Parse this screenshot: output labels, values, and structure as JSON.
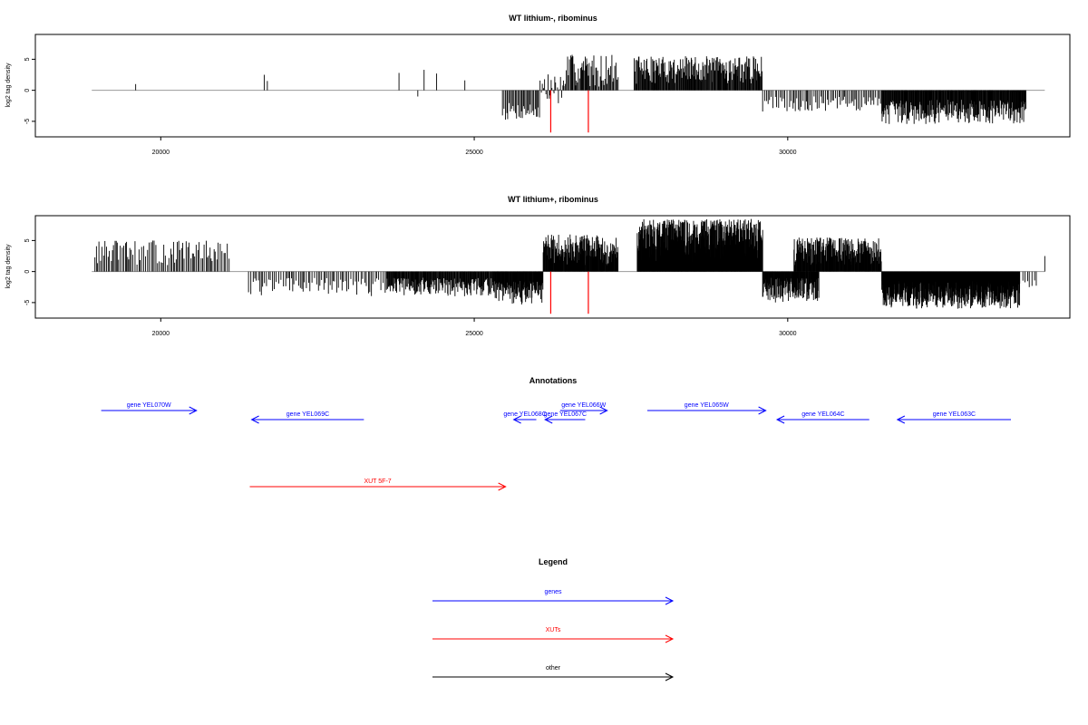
{
  "chart_data": [
    {
      "type": "bar",
      "title": "WT lithium-, ribominus",
      "ylabel": "log2 tag density",
      "xlim": [
        18000,
        34500
      ],
      "ylim": [
        -7.5,
        9
      ],
      "x_ticks": [
        20000,
        25000,
        30000
      ],
      "y_ticks": [
        -5,
        0,
        5
      ],
      "baseline_range": [
        18900,
        34100
      ],
      "sparse_positive": [
        [
          19600,
          1
        ],
        [
          21650,
          2.5
        ],
        [
          21700,
          1.5
        ],
        [
          23800,
          2.8
        ],
        [
          24200,
          3.3
        ],
        [
          24400,
          2.7
        ],
        [
          24850,
          1.6
        ]
      ],
      "sparse_negative": [
        [
          24100,
          -1
        ]
      ],
      "dense_segments": [
        {
          "from": 25450,
          "to": 26050,
          "min": -5,
          "max": -2,
          "step": 18
        },
        {
          "from": 26050,
          "to": 26450,
          "min": -3,
          "max": 2.8,
          "step": 16
        },
        {
          "from": 26450,
          "to": 27300,
          "min": 0.5,
          "max": 5.8,
          "step": 15
        },
        {
          "from": 27550,
          "to": 29600,
          "min": 1,
          "max": 5.5,
          "step": 11
        },
        {
          "from": 29600,
          "to": 30100,
          "min": -3.5,
          "max": -1,
          "step": 30
        },
        {
          "from": 30100,
          "to": 31500,
          "min": -3.5,
          "max": -1,
          "step": 26
        },
        {
          "from": 31500,
          "to": 33800,
          "min": -5.5,
          "max": -1.5,
          "step": 9
        }
      ],
      "marker_lines": [
        {
          "x": 26220,
          "y": -6.8
        },
        {
          "x": 26820,
          "y": -6.8
        }
      ],
      "seed": 7
    },
    {
      "type": "bar",
      "title": "WT lithium+, ribominus",
      "ylabel": "log2 tag density",
      "xlim": [
        18000,
        34500
      ],
      "ylim": [
        -7.5,
        9
      ],
      "x_ticks": [
        20000,
        25000,
        30000
      ],
      "y_ticks": [
        -5,
        0,
        5
      ],
      "baseline_range": [
        18900,
        34100
      ],
      "sparse_positive": [
        [
          34100,
          2.5
        ]
      ],
      "sparse_negative": [],
      "dense_segments": [
        {
          "from": 18950,
          "to": 21100,
          "min": 1,
          "max": 5,
          "step": 25
        },
        {
          "from": 21400,
          "to": 23600,
          "min": -4,
          "max": -1,
          "step": 30
        },
        {
          "from": 23600,
          "to": 25300,
          "min": -4,
          "max": -1,
          "step": 10
        },
        {
          "from": 25300,
          "to": 26100,
          "min": -5.5,
          "max": -1.5,
          "step": 7
        },
        {
          "from": 26100,
          "to": 27300,
          "min": 1,
          "max": 6,
          "step": 7
        },
        {
          "from": 27600,
          "to": 29600,
          "min": 1.5,
          "max": 8.5,
          "step": 4
        },
        {
          "from": 29600,
          "to": 30500,
          "min": -5,
          "max": -1,
          "step": 7
        },
        {
          "from": 30100,
          "to": 31500,
          "min": 1,
          "max": 5.5,
          "step": 7
        },
        {
          "from": 31500,
          "to": 33700,
          "min": -6,
          "max": -1.5,
          "step": 4
        },
        {
          "from": 33700,
          "to": 34000,
          "min": -3,
          "max": -1,
          "step": 40
        }
      ],
      "marker_lines": [
        {
          "x": 26220,
          "y": -6.8
        },
        {
          "x": 26820,
          "y": -6.8
        }
      ],
      "seed": 13
    }
  ],
  "annotations": {
    "title": "Annotations",
    "genes": [
      {
        "label": "gene YEL070W",
        "strand": "+",
        "start": 19050,
        "end": 20570,
        "row": 1
      },
      {
        "label": "gene YEL069C",
        "strand": "-",
        "start": 21450,
        "end": 23240,
        "row": 2
      },
      {
        "label": "gene YEL068C",
        "strand": "-",
        "start": 25630,
        "end": 25990,
        "row": 2
      },
      {
        "label": "gene YEL067C",
        "strand": "-",
        "start": 26130,
        "end": 26770,
        "row": 2
      },
      {
        "label": "gene YEL066W",
        "strand": "+",
        "start": 26370,
        "end": 27120,
        "row": 1
      },
      {
        "label": "gene YEL065W",
        "strand": "+",
        "start": 27760,
        "end": 29650,
        "row": 1
      },
      {
        "label": "gene YEL064C",
        "strand": "-",
        "start": 29830,
        "end": 31300,
        "row": 2
      },
      {
        "label": "gene YEL063C",
        "strand": "-",
        "start": 31750,
        "end": 33560,
        "row": 2
      }
    ],
    "xuts": [
      {
        "label": "XUT 5F-7",
        "strand": "+",
        "start": 21420,
        "end": 25500,
        "row": 3
      }
    ]
  },
  "legend": {
    "title": "Legend",
    "items": [
      {
        "label": "genes",
        "color": "#0000ff"
      },
      {
        "label": "XUTs",
        "color": "#ff0000"
      },
      {
        "label": "other",
        "color": "#000000"
      }
    ]
  },
  "colors": {
    "gene": "#0000ff",
    "xut": "#ff0000",
    "signal": "#000000",
    "marker": "#ff0000",
    "baseline": "#999999"
  }
}
